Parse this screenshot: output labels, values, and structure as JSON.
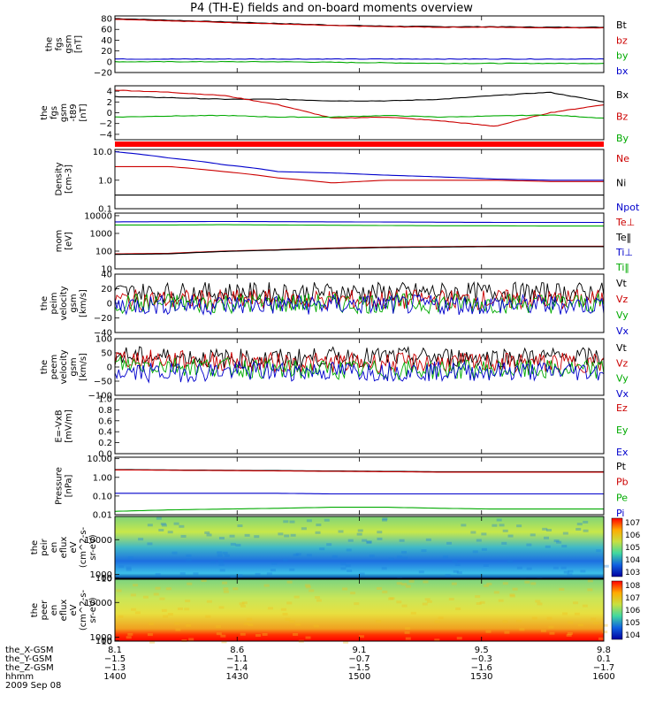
{
  "title": "P4 (TH-E) fields and on-board moments overview",
  "date_label": "2009 Sep 08",
  "chart_data": [
    {
      "type": "line",
      "ylabel": [
        "the",
        "fgs",
        "gsm",
        "[nT]"
      ],
      "ylim": [
        -20,
        85
      ],
      "yticks": [
        80,
        60,
        40,
        20,
        0,
        -20
      ],
      "series": [
        {
          "name": "Bt",
          "color": "#000000",
          "values": [
            80,
            77,
            74,
            71,
            68,
            66,
            65,
            65,
            64,
            64
          ]
        },
        {
          "name": "bz",
          "color": "#cc0000",
          "values": [
            79,
            76,
            73,
            70,
            67,
            65,
            64,
            64,
            63,
            63
          ]
        },
        {
          "name": "by",
          "color": "#00aa00",
          "values": [
            0,
            0,
            0,
            0,
            -1,
            -2,
            -3,
            -3,
            -3,
            -3
          ]
        },
        {
          "name": "bx",
          "color": "#0000cc",
          "values": [
            5,
            5,
            5,
            5,
            5,
            5,
            5,
            5,
            5,
            5
          ]
        }
      ]
    },
    {
      "type": "line",
      "ylabel": [
        "the",
        "fgs",
        "gsm",
        "-t89",
        "[nT]"
      ],
      "ylim": [
        -5,
        5
      ],
      "yticks": [
        4,
        2,
        0,
        -2,
        -4
      ],
      "series": [
        {
          "name": "Bx",
          "color": "#000000",
          "values": [
            3,
            2.8,
            2.5,
            2.5,
            2.2,
            2.2,
            2.5,
            3.2,
            3.8,
            2
          ]
        },
        {
          "name": "Bz",
          "color": "#cc0000",
          "values": [
            4.2,
            3.8,
            3.2,
            1.5,
            -1,
            -0.8,
            -1.5,
            -2.5,
            0,
            1.5
          ]
        },
        {
          "name": "By",
          "color": "#00aa00",
          "values": [
            -0.8,
            -0.6,
            -0.5,
            -0.8,
            -0.8,
            -0.5,
            -0.8,
            -0.6,
            -0.4,
            -1
          ]
        }
      ]
    },
    {
      "type": "line",
      "log": true,
      "ylabel": [
        "Density",
        "[cm-3]"
      ],
      "ylim": [
        0.1,
        12
      ],
      "ytick_labels": [
        "10.0",
        "1.0",
        "0.1"
      ],
      "ytick_values": [
        10,
        1,
        0.1
      ],
      "series": [
        {
          "name": "Ne",
          "color": "#cc0000",
          "values": [
            3,
            3,
            2,
            1.2,
            0.8,
            1,
            1,
            1,
            0.9,
            0.9
          ]
        },
        {
          "name": "Ni",
          "color": "#000000",
          "values": [
            0.3,
            0.3,
            0.3,
            0.3,
            0.3,
            0.3,
            0.3,
            0.3,
            0.3,
            0.3
          ]
        },
        {
          "name": "Npot",
          "color": "#0000cc",
          "values": [
            10,
            6,
            3.5,
            2,
            1.8,
            1.5,
            1.3,
            1.1,
            1,
            1
          ]
        }
      ]
    },
    {
      "type": "line",
      "log": true,
      "ylabel": [
        "mom",
        "[eV]"
      ],
      "ylim": [
        10,
        14000
      ],
      "ytick_labels": [
        "10000",
        "1000",
        "100",
        "10"
      ],
      "ytick_values": [
        10000,
        1000,
        100,
        10
      ],
      "series": [
        {
          "name": "Te⊥",
          "color": "#cc0000",
          "values": [
            70,
            75,
            100,
            120,
            150,
            170,
            180,
            190,
            190,
            190
          ]
        },
        {
          "name": "Te‖",
          "color": "#000000",
          "values": [
            65,
            70,
            95,
            115,
            140,
            160,
            170,
            180,
            180,
            180
          ]
        },
        {
          "name": "Ti⊥",
          "color": "#0000cc",
          "values": [
            4500,
            4600,
            4700,
            4600,
            4500,
            4400,
            4300,
            4200,
            4200,
            4200
          ]
        },
        {
          "name": "Ti‖",
          "color": "#00aa00",
          "values": [
            3000,
            3000,
            3100,
            3000,
            2900,
            2800,
            2700,
            2700,
            2600,
            2600
          ]
        }
      ]
    },
    {
      "type": "line",
      "noisy": true,
      "ylabel": [
        "the",
        "peim",
        "velocity",
        "gsm",
        "[km/s]"
      ],
      "ylim": [
        -40,
        40
      ],
      "yticks": [
        40,
        20,
        0,
        -20,
        -40
      ],
      "series": [
        {
          "name": "Vt",
          "color": "#000000",
          "values": [
            15,
            15,
            15,
            15,
            15,
            15,
            15,
            15,
            15,
            15
          ]
        },
        {
          "name": "Vz",
          "color": "#cc0000",
          "values": [
            5,
            5,
            5,
            5,
            5,
            5,
            5,
            5,
            5,
            5
          ]
        },
        {
          "name": "Vy",
          "color": "#00aa00",
          "values": [
            0,
            0,
            0,
            0,
            0,
            0,
            0,
            0,
            0,
            0
          ]
        },
        {
          "name": "Vx",
          "color": "#0000cc",
          "values": [
            -2,
            -2,
            -2,
            -2,
            -2,
            -2,
            -2,
            -2,
            -2,
            -2
          ]
        }
      ]
    },
    {
      "type": "line",
      "noisy": true,
      "ylabel": [
        "the",
        "peem",
        "velocity",
        "gsm",
        "[km/s]"
      ],
      "ylim": [
        -100,
        100
      ],
      "yticks": [
        100,
        50,
        0,
        -50,
        -100
      ],
      "series": [
        {
          "name": "Vt",
          "color": "#000000",
          "values": [
            40,
            35,
            30,
            30,
            35,
            35,
            35,
            35,
            35,
            35
          ]
        },
        {
          "name": "Vz",
          "color": "#cc0000",
          "values": [
            30,
            25,
            20,
            15,
            15,
            15,
            15,
            15,
            15,
            15
          ]
        },
        {
          "name": "Vy",
          "color": "#00aa00",
          "values": [
            10,
            5,
            0,
            -10,
            -10,
            -10,
            -10,
            -10,
            -10,
            -10
          ]
        },
        {
          "name": "Vx",
          "color": "#0000cc",
          "values": [
            -20,
            -20,
            -15,
            -15,
            -15,
            -15,
            -15,
            -15,
            -15,
            -15
          ]
        }
      ]
    },
    {
      "type": "line",
      "ylabel": [
        "E=-VxB",
        "[mV/m]"
      ],
      "ylim": [
        0,
        1
      ],
      "ytick_labels": [
        "1.0",
        "0.8",
        "0.6",
        "0.4",
        "0.2",
        "0.0"
      ],
      "ytick_values": [
        1,
        0.8,
        0.6,
        0.4,
        0.2,
        0
      ],
      "series": [
        {
          "name": "Ez",
          "color": "#cc0000",
          "values": []
        },
        {
          "name": "Ey",
          "color": "#00aa00",
          "values": []
        },
        {
          "name": "Ex",
          "color": "#0000cc",
          "values": []
        }
      ]
    },
    {
      "type": "line",
      "log": true,
      "ylabel": [
        "Pressure",
        "[nPa]"
      ],
      "ylim": [
        0.01,
        12
      ],
      "ytick_labels": [
        "10.00",
        "1.00",
        "0.10",
        "0.01"
      ],
      "ytick_values": [
        10,
        1,
        0.1,
        0.01
      ],
      "series": [
        {
          "name": "Pt",
          "color": "#000000",
          "values": [
            2.6,
            2.5,
            2.4,
            2.3,
            2.2,
            2.1,
            2.0,
            2.0,
            2.0,
            2.0
          ]
        },
        {
          "name": "Pb",
          "color": "#cc0000",
          "values": [
            2.5,
            2.4,
            2.3,
            2.2,
            2.1,
            2.0,
            1.9,
            1.9,
            1.9,
            1.9
          ]
        },
        {
          "name": "Pe",
          "color": "#00aa00",
          "values": [
            0.015,
            0.018,
            0.02,
            0.022,
            0.025,
            0.025,
            0.022,
            0.02,
            0.02,
            0.02
          ]
        },
        {
          "name": "Pi",
          "color": "#0000cc",
          "values": [
            0.14,
            0.14,
            0.14,
            0.14,
            0.13,
            0.13,
            0.13,
            0.13,
            0.13,
            0.13
          ]
        }
      ]
    },
    {
      "type": "heatmap",
      "ylabel": [
        "the",
        "peir",
        "en",
        "eflux",
        "eV",
        "(cm^2-s-",
        "sr-eV)"
      ],
      "ytick_labels": [
        "10000",
        "1000",
        "100",
        "10"
      ],
      "ytick_values": [
        10000,
        1000,
        100,
        10
      ],
      "ylim": [
        8,
        16000
      ],
      "colorbar_labels": [
        "10^7",
        "10^6",
        "10^5",
        "10^4",
        "10^3"
      ]
    },
    {
      "type": "heatmap",
      "ylabel": [
        "the",
        "peer",
        "en",
        "eflux",
        "eV",
        "(cm^2-s-",
        "sr-eV)"
      ],
      "ytick_labels": [
        "10000",
        "1000",
        "100",
        "10"
      ],
      "ytick_values": [
        10000,
        1000,
        100,
        10
      ],
      "ylim": [
        8,
        16000
      ],
      "colorbar_labels": [
        "10^8",
        "10^7",
        "10^6",
        "10^5",
        "10^4"
      ]
    }
  ],
  "ephemeris": {
    "rows": [
      {
        "label": "the_X-GSM",
        "values": [
          "8.1",
          "8.6",
          "9.1",
          "9.5",
          "9.8"
        ]
      },
      {
        "label": "the_Y-GSM",
        "values": [
          "-1.5",
          "-1.1",
          "-0.7",
          "-0.3",
          "0.1"
        ]
      },
      {
        "label": "the_Z-GSM",
        "values": [
          "-1.3",
          "-1.4",
          "-1.5",
          "-1.6",
          "-1.7"
        ]
      },
      {
        "label": "hhmm",
        "values": [
          "1400",
          "1430",
          "1500",
          "1530",
          "1600"
        ]
      }
    ]
  }
}
